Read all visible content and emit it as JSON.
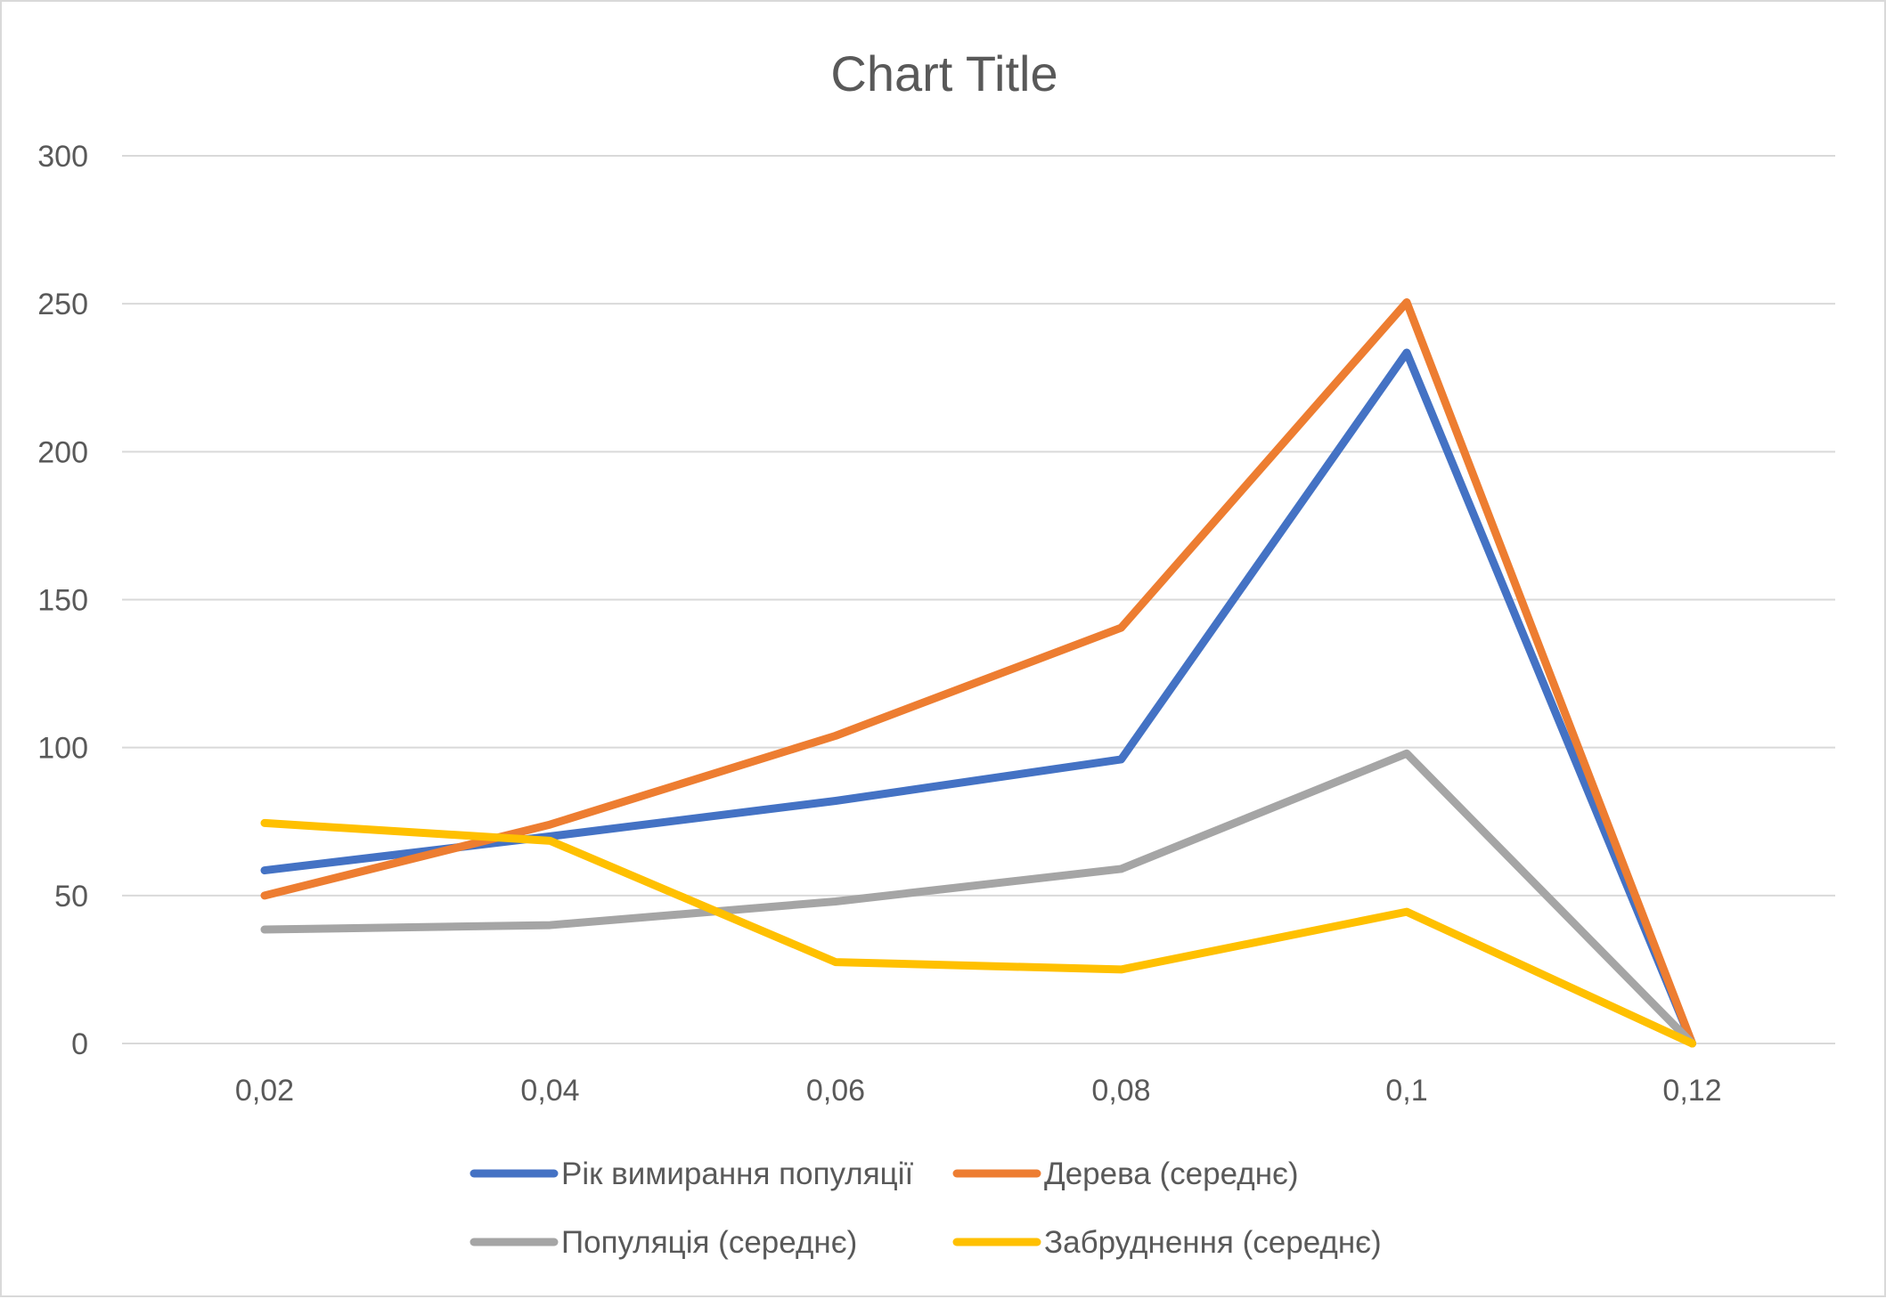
{
  "chart_data": {
    "type": "line",
    "title": "Chart Title",
    "xlabel": "",
    "ylabel": "",
    "categories": [
      "0,02",
      "0,04",
      "0,06",
      "0,08",
      "0,1",
      "0,12"
    ],
    "ylim": [
      0,
      300
    ],
    "yticks": [
      0,
      50,
      100,
      150,
      200,
      250,
      300
    ],
    "grid": true,
    "legend_position": "bottom",
    "series": [
      {
        "name": "Рік вимирання популяції",
        "color": "#4472C4",
        "values": [
          58.5,
          70,
          82,
          96,
          233.5,
          0
        ]
      },
      {
        "name": "Дерева (середнє)",
        "color": "#ED7D31",
        "values": [
          50,
          74,
          104,
          140.5,
          250.5,
          0
        ]
      },
      {
        "name": "Популяція (середнє)",
        "color": "#A5A5A5",
        "values": [
          38.5,
          40,
          48,
          59,
          98,
          0
        ]
      },
      {
        "name": "Забруднення (середнє)",
        "color": "#FFC000",
        "values": [
          74.5,
          68.5,
          27.5,
          25,
          44.5,
          0
        ]
      }
    ]
  }
}
